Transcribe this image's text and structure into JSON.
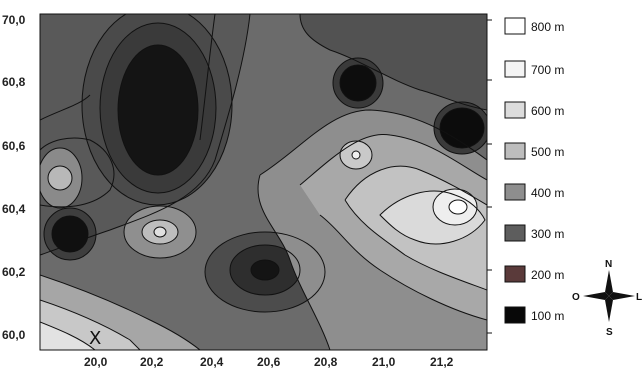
{
  "map": {
    "axes": {
      "x_ticks": [
        "20,0",
        "20,2",
        "20,4",
        "20,6",
        "20,8",
        "21,0",
        "21,2"
      ],
      "y_ticks": [
        "70,0",
        "60,8",
        "60,6",
        "60,4",
        "60,2",
        "60,0"
      ]
    },
    "marker_label": "X",
    "legend": [
      {
        "label": "800 m",
        "color": "#ffffff"
      },
      {
        "label": "700 m",
        "color": "#f4f4f4"
      },
      {
        "label": "600 m",
        "color": "#dcdcdc"
      },
      {
        "label": "500 m",
        "color": "#bdbdbd"
      },
      {
        "label": "400 m",
        "color": "#8e8e8e"
      },
      {
        "label": "300 m",
        "color": "#5d5d5d"
      },
      {
        "label": "200 m",
        "color": "#5a3a3a"
      },
      {
        "label": "100 m",
        "color": "#080808"
      }
    ],
    "compass": {
      "north": "N",
      "south": "S",
      "east": "L",
      "west": "O"
    }
  }
}
